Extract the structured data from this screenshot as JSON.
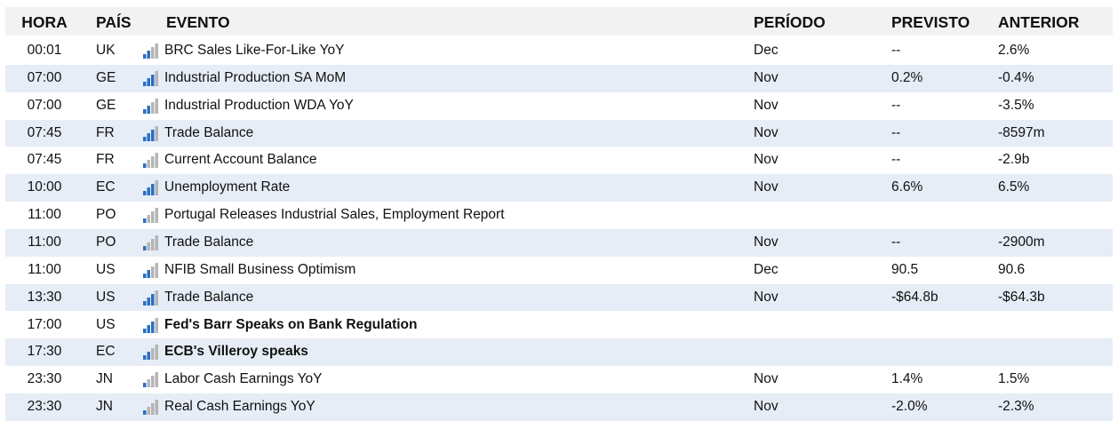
{
  "table": {
    "columns": [
      "HORA",
      "PAÍS",
      "EVENTO",
      "PERÍODO",
      "PREVISTO",
      "ANTERIOR"
    ],
    "rows": [
      {
        "time": "00:01",
        "country": "UK",
        "importance": 2,
        "event": "BRC Sales Like-For-Like YoY",
        "period": "Dec",
        "forecast": "--",
        "previous": "2.6%"
      },
      {
        "time": "07:00",
        "country": "GE",
        "importance": 3,
        "event": "Industrial Production SA MoM",
        "period": "Nov",
        "forecast": "0.2%",
        "previous": "-0.4%"
      },
      {
        "time": "07:00",
        "country": "GE",
        "importance": 2,
        "event": "Industrial Production WDA YoY",
        "period": "Nov",
        "forecast": "--",
        "previous": "-3.5%"
      },
      {
        "time": "07:45",
        "country": "FR",
        "importance": 3,
        "event": "Trade Balance",
        "period": "Nov",
        "forecast": "--",
        "previous": "-8597m"
      },
      {
        "time": "07:45",
        "country": "FR",
        "importance": 1,
        "event": "Current Account Balance",
        "period": "Nov",
        "forecast": "--",
        "previous": "-2.9b"
      },
      {
        "time": "10:00",
        "country": "EC",
        "importance": 3,
        "event": "Unemployment Rate",
        "period": "Nov",
        "forecast": "6.6%",
        "previous": "6.5%"
      },
      {
        "time": "11:00",
        "country": "PO",
        "importance": 1,
        "event": "Portugal Releases Industrial Sales, Employment Report"
      },
      {
        "time": "11:00",
        "country": "PO",
        "importance": 1,
        "event": "Trade Balance",
        "period": "Nov",
        "forecast": "--",
        "previous": "-2900m"
      },
      {
        "time": "11:00",
        "country": "US",
        "importance": 2,
        "event": "NFIB Small Business Optimism",
        "period": "Dec",
        "forecast": "90.5",
        "previous": "90.6"
      },
      {
        "time": "13:30",
        "country": "US",
        "importance": 3,
        "event": "Trade Balance",
        "period": "Nov",
        "forecast": "-$64.8b",
        "previous": "-$64.3b"
      },
      {
        "time": "17:00",
        "country": "US",
        "importance": 3,
        "event": "Fed's Barr Speaks on Bank Regulation",
        "bold": true
      },
      {
        "time": "17:30",
        "country": "EC",
        "importance": 2,
        "event": "ECB's Villeroy speaks",
        "bold": true
      },
      {
        "time": "23:30",
        "country": "JN",
        "importance": 1,
        "event": "Labor Cash Earnings YoY",
        "period": "Nov",
        "forecast": "1.4%",
        "previous": "1.5%"
      },
      {
        "time": "23:30",
        "country": "JN",
        "importance": 1,
        "event": "Real Cash Earnings YoY",
        "period": "Nov",
        "forecast": "-2.0%",
        "previous": "-2.3%"
      }
    ]
  }
}
